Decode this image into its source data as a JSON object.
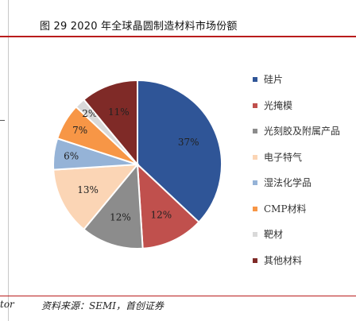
{
  "figure": {
    "title": "图 29 2020 年全球晶圆制造材料市场份额",
    "source": "资料来源：SEMI，首创证券",
    "left_fragment": "tor"
  },
  "chart_data": {
    "type": "pie",
    "title": "",
    "legend_position": "right",
    "slices": [
      {
        "label": "硅片",
        "value": 37,
        "display": "37%",
        "color": "#2f5597"
      },
      {
        "label": "光掩模",
        "value": 12,
        "display": "12%",
        "color": "#c0504d"
      },
      {
        "label": "光刻胶及附属产品",
        "value": 12,
        "display": "12%",
        "color": "#8c8c8c"
      },
      {
        "label": "电子特气",
        "value": 13,
        "display": "13%",
        "color": "#fbd5b5"
      },
      {
        "label": "湿法化学品",
        "value": 6,
        "display": "6%",
        "color": "#95b3d7"
      },
      {
        "label": "CMP材料",
        "value": 7,
        "display": "7%",
        "color": "#f79646"
      },
      {
        "label": "靶材",
        "value": 2,
        "display": "2%",
        "color": "#d9d9d9"
      },
      {
        "label": "其他材料",
        "value": 11,
        "display": "11%",
        "color": "#7f2a27"
      }
    ]
  }
}
